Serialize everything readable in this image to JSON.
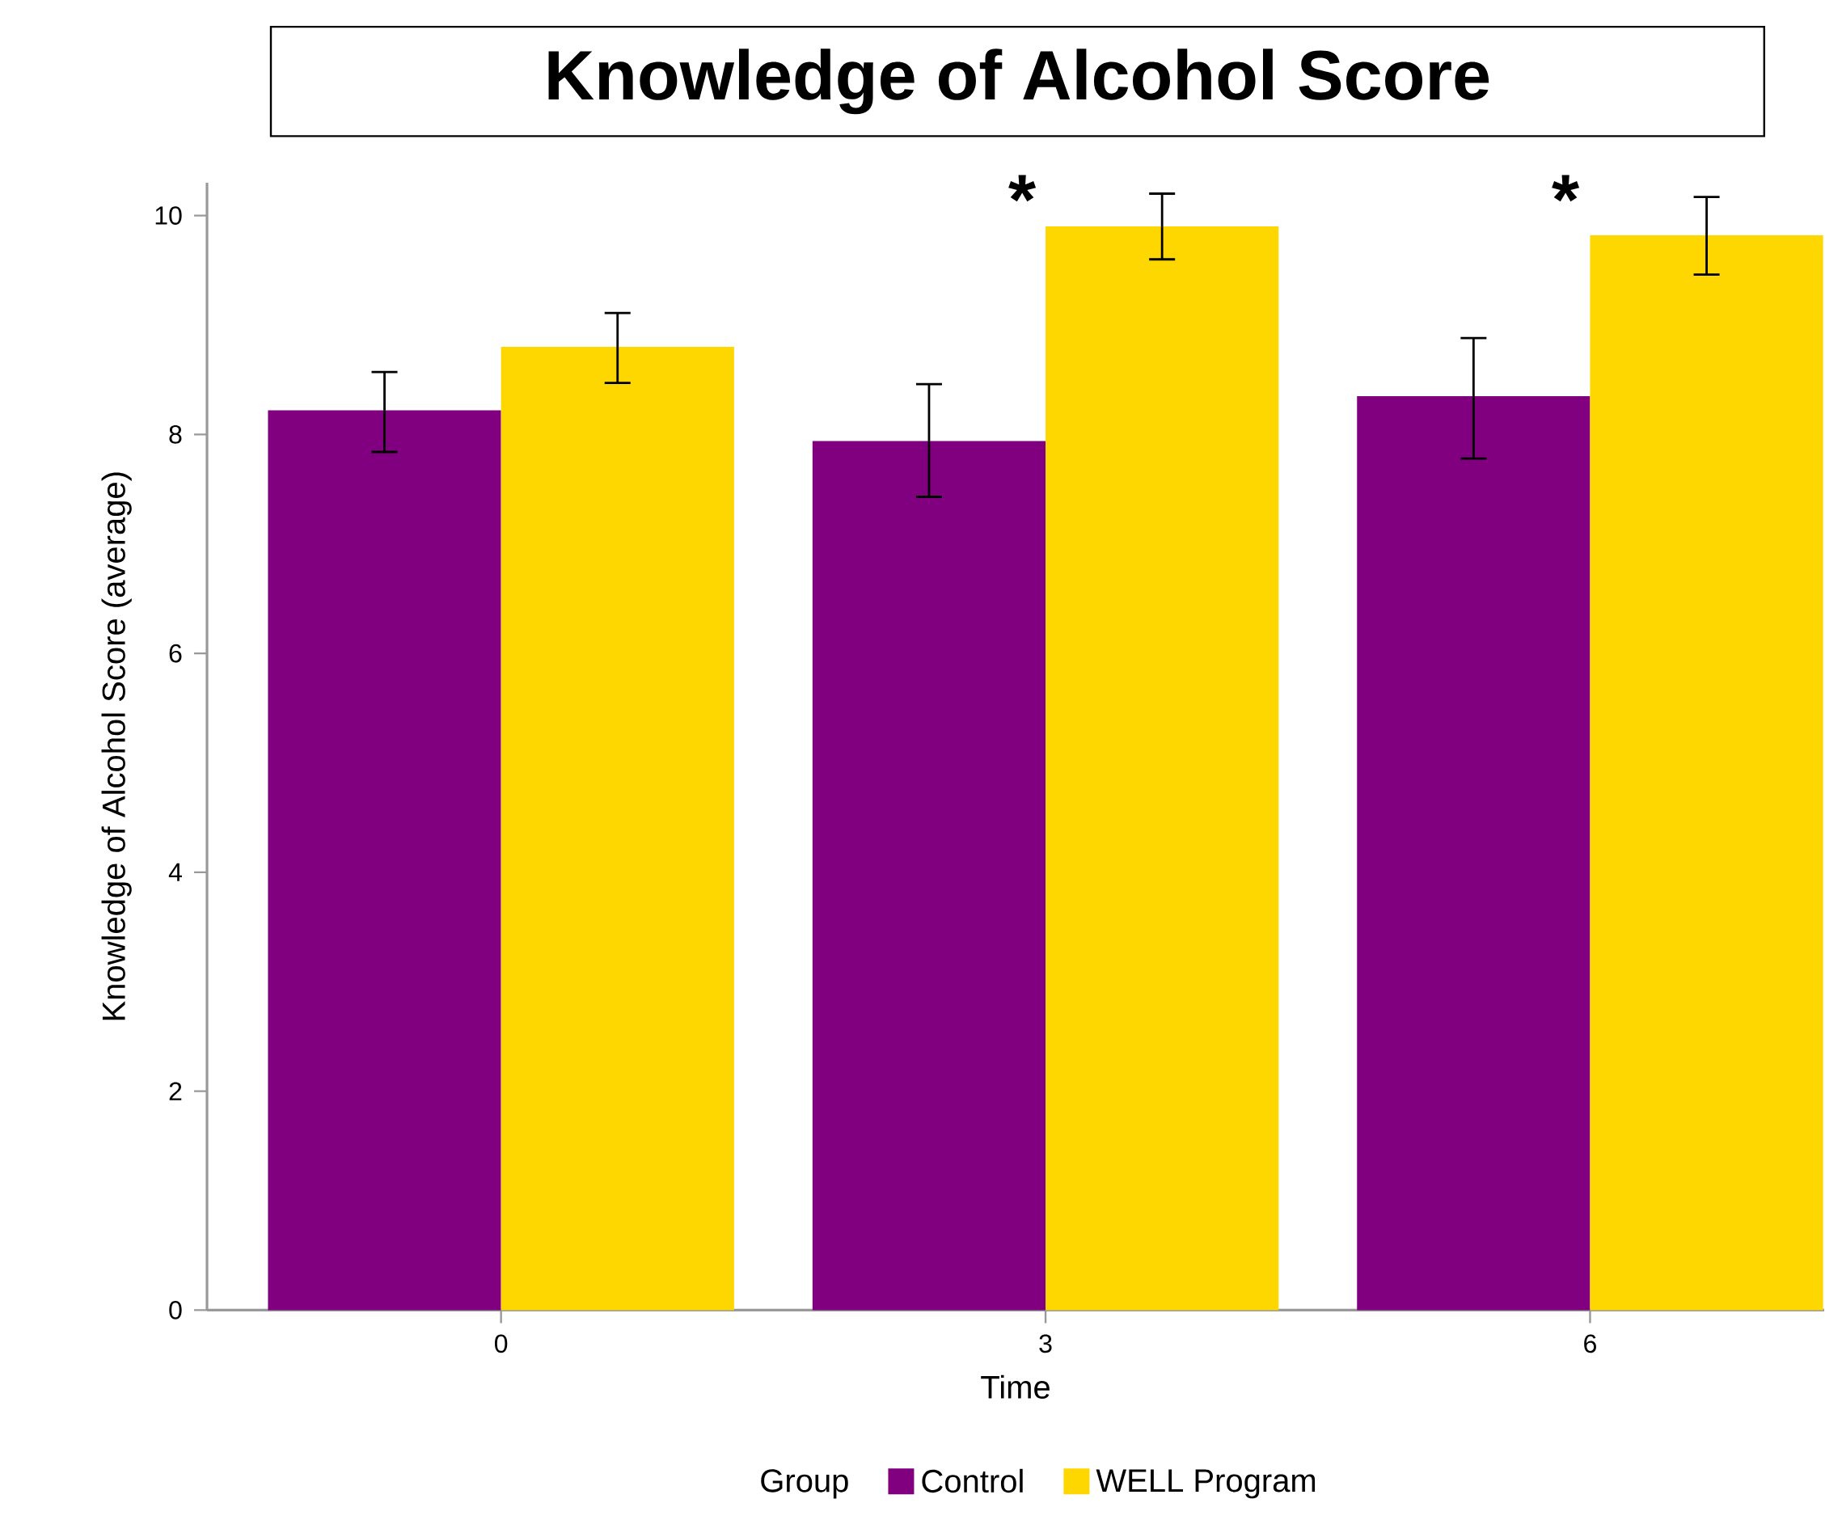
{
  "chart_data": {
    "type": "bar",
    "title": "Knowledge of Alcohol Score",
    "xlabel": "Time",
    "ylabel": "Knowledge of Alcohol Score (average)",
    "legend_title": "Group",
    "legend": "bottom",
    "categories": [
      "0",
      "3",
      "6"
    ],
    "series": [
      {
        "name": "Control",
        "color": "#800080",
        "values": [
          8.22,
          7.94,
          8.35
        ],
        "errors": [
          [
            7.84,
            8.57
          ],
          [
            7.43,
            8.46
          ],
          [
            7.78,
            8.88
          ]
        ]
      },
      {
        "name": "WELL Program",
        "color": "#ffd700",
        "values": [
          8.8,
          9.9,
          9.82
        ],
        "errors": [
          [
            8.47,
            9.11
          ],
          [
            9.6,
            10.2
          ],
          [
            9.46,
            10.17
          ]
        ]
      }
    ],
    "ylim": [
      0,
      10.3
    ],
    "yticks": [
      0,
      2,
      4,
      6,
      8,
      10
    ],
    "annotations": [
      "*",
      "*"
    ]
  }
}
